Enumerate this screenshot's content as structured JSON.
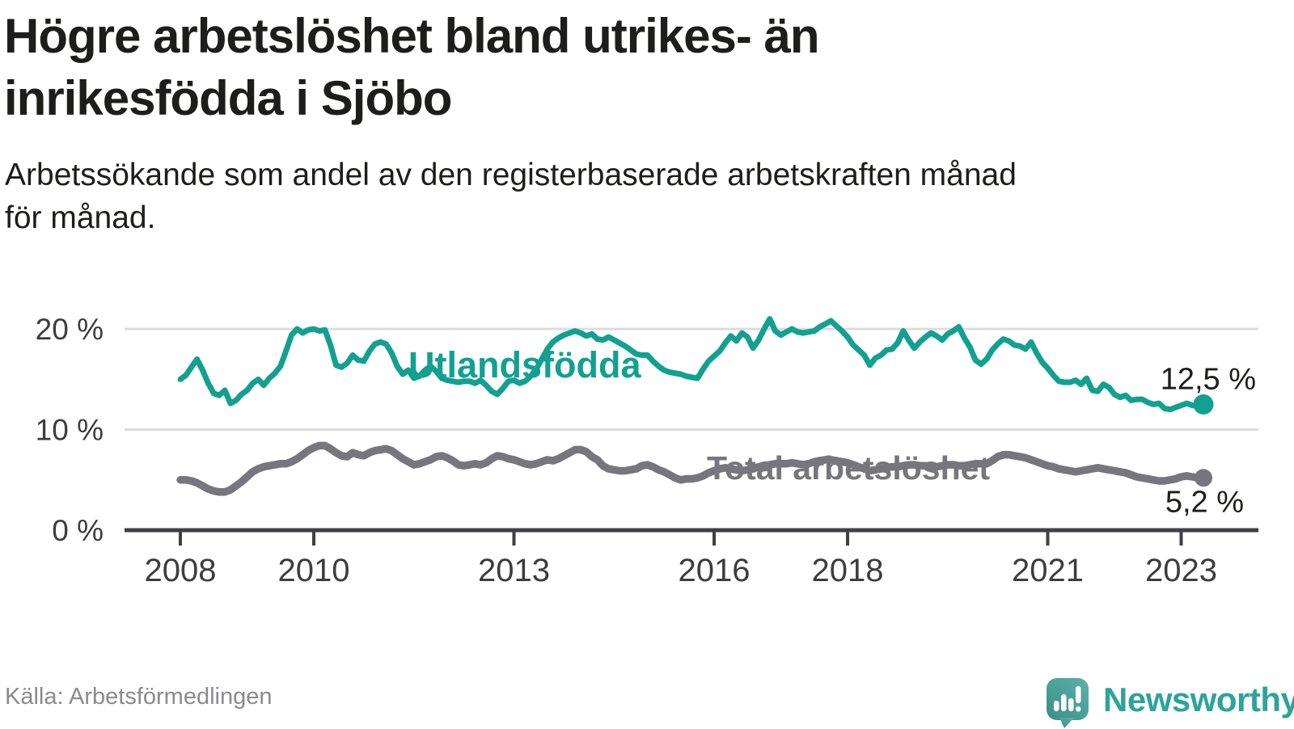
{
  "title": {
    "lines": [
      "Högre arbetslöshet bland utrikes- än",
      "inrikesfödda i Sjöbo"
    ]
  },
  "subtitle": {
    "lines": [
      "Arbetssökande som andel av den registerbaserade arbetskraften månad",
      "för månad."
    ]
  },
  "footer": {
    "source": "Källa: Arbetsförmedlingen",
    "brand": "Newsworthy"
  },
  "colors": {
    "background": "#ffffff",
    "text": "#1d1d1b",
    "axis_text": "#3d3d3d",
    "grid": "#dcdcdc",
    "axis": "#3f3f44",
    "muted_text": "#8a8a90",
    "brand_teal": "#2ca49b",
    "series_utlandsfodda": "#12a090",
    "series_total": "#76767c"
  },
  "chart_data": {
    "type": "line",
    "title": "Högre arbetslöshet bland utrikes- än inrikesfödda i Sjöbo",
    "subtitle": "Arbetssökande som andel av den registerbaserade arbetskraften månad för månad.",
    "source": "Källa: Arbetsförmedlingen",
    "x_unit": "month",
    "x_start": "2008-01",
    "x_end": "2023-05",
    "x_tick_years": [
      2008,
      2010,
      2013,
      2016,
      2018,
      2021,
      2023
    ],
    "x_tick_labels": [
      "2008",
      "2010",
      "2013",
      "2016",
      "2018",
      "2021",
      "2023"
    ],
    "y_tick_values": [
      0,
      10,
      20
    ],
    "y_tick_labels": [
      "0 %",
      "10 %",
      "20 %"
    ],
    "ylim": [
      0,
      22
    ],
    "grid": true,
    "legend": "inline-labels",
    "series": [
      {
        "name": "Utlandsfödda",
        "color": "#12a090",
        "end_label": "12,5 %",
        "last_value": 12.5,
        "values": [
          15.0,
          15.4,
          16.2,
          17.0,
          15.9,
          14.6,
          13.6,
          13.4,
          13.9,
          12.6,
          12.9,
          13.5,
          13.9,
          14.6,
          15.0,
          14.4,
          15.1,
          15.6,
          16.3,
          17.8,
          19.4,
          20.0,
          19.6,
          19.9,
          20.0,
          19.8,
          19.9,
          18.4,
          16.4,
          16.2,
          16.6,
          17.4,
          16.9,
          16.8,
          17.8,
          18.5,
          18.7,
          18.5,
          17.6,
          16.3,
          15.5,
          15.9,
          15.1,
          15.3,
          15.9,
          16.3,
          15.8,
          15.1,
          14.9,
          14.8,
          14.7,
          14.8,
          14.8,
          14.6,
          14.9,
          14.4,
          13.8,
          13.5,
          14.1,
          14.8,
          14.9,
          14.6,
          14.8,
          15.3,
          16.0,
          17.0,
          18.0,
          18.7,
          19.1,
          19.4,
          19.6,
          19.8,
          19.6,
          19.3,
          19.5,
          19.0,
          18.9,
          19.2,
          18.9,
          18.6,
          18.3,
          17.9,
          17.5,
          17.4,
          17.4,
          16.8,
          16.3,
          15.9,
          15.7,
          15.6,
          15.5,
          15.3,
          15.2,
          15.1,
          16.0,
          16.8,
          17.3,
          17.8,
          18.6,
          19.3,
          18.8,
          19.6,
          19.2,
          18.1,
          18.9,
          20.0,
          21.0,
          19.8,
          19.4,
          19.7,
          20.0,
          19.7,
          19.6,
          19.7,
          19.8,
          20.2,
          20.5,
          20.8,
          20.3,
          19.8,
          19.2,
          18.4,
          17.9,
          17.4,
          16.4,
          17.1,
          17.4,
          17.9,
          18.0,
          18.6,
          19.8,
          18.9,
          18.1,
          18.7,
          19.2,
          19.6,
          19.3,
          18.9,
          19.5,
          19.8,
          20.2,
          19.1,
          18.2,
          16.9,
          16.5,
          17.0,
          17.9,
          18.5,
          19.0,
          18.8,
          18.4,
          18.3,
          18.0,
          18.7,
          17.6,
          16.7,
          16.1,
          15.4,
          14.8,
          14.7,
          14.7,
          14.9,
          14.5,
          15.1,
          13.9,
          13.8,
          14.5,
          14.2,
          13.5,
          13.2,
          13.4,
          12.9,
          13.0,
          13.0,
          12.7,
          12.5,
          12.6,
          12.1,
          12.0,
          12.2,
          12.4,
          12.6,
          12.4,
          12.3,
          12.5
        ]
      },
      {
        "name": "Total arbetslöshet",
        "color": "#76767c",
        "end_label": "5,2 %",
        "last_value": 5.2,
        "values": [
          5.0,
          5.0,
          4.9,
          4.7,
          4.4,
          4.1,
          3.9,
          3.8,
          3.8,
          4.0,
          4.4,
          4.8,
          5.3,
          5.8,
          6.1,
          6.3,
          6.4,
          6.5,
          6.6,
          6.6,
          6.8,
          7.1,
          7.5,
          7.9,
          8.2,
          8.4,
          8.4,
          8.1,
          7.7,
          7.4,
          7.3,
          7.7,
          7.5,
          7.4,
          7.7,
          7.9,
          8.0,
          8.1,
          7.9,
          7.5,
          7.1,
          6.8,
          6.5,
          6.6,
          6.8,
          7.0,
          7.3,
          7.4,
          7.2,
          6.9,
          6.5,
          6.4,
          6.5,
          6.6,
          6.5,
          6.7,
          7.1,
          7.4,
          7.3,
          7.1,
          7.0,
          6.8,
          6.6,
          6.5,
          6.6,
          6.8,
          7.0,
          6.9,
          7.1,
          7.4,
          7.7,
          8.0,
          8.0,
          7.8,
          7.3,
          7.0,
          6.4,
          6.1,
          6.0,
          5.9,
          5.9,
          6.0,
          6.1,
          6.4,
          6.5,
          6.3,
          6.0,
          5.8,
          5.5,
          5.2,
          5.0,
          5.1,
          5.1,
          5.2,
          5.4,
          5.7,
          5.9,
          6.1,
          6.2,
          6.1,
          6.0,
          5.9,
          6.0,
          6.1,
          6.3,
          6.4,
          6.5,
          6.6,
          6.6,
          6.6,
          6.7,
          6.6,
          6.5,
          6.6,
          6.8,
          6.9,
          7.0,
          7.0,
          6.9,
          6.8,
          6.7,
          6.5,
          6.3,
          6.1,
          5.9,
          6.0,
          6.1,
          6.2,
          6.3,
          6.3,
          6.4,
          6.5,
          6.5,
          6.4,
          6.4,
          6.3,
          6.3,
          6.4,
          6.5,
          6.5,
          6.4,
          6.4,
          6.5,
          6.6,
          6.6,
          6.6,
          6.9,
          7.3,
          7.5,
          7.5,
          7.4,
          7.3,
          7.2,
          7.0,
          6.8,
          6.6,
          6.4,
          6.3,
          6.1,
          6.0,
          5.9,
          5.8,
          5.9,
          6.0,
          6.1,
          6.2,
          6.1,
          6.0,
          5.9,
          5.8,
          5.7,
          5.5,
          5.3,
          5.2,
          5.1,
          5.0,
          4.9,
          4.9,
          5.0,
          5.1,
          5.3,
          5.4,
          5.3,
          5.2,
          5.2
        ]
      }
    ]
  }
}
